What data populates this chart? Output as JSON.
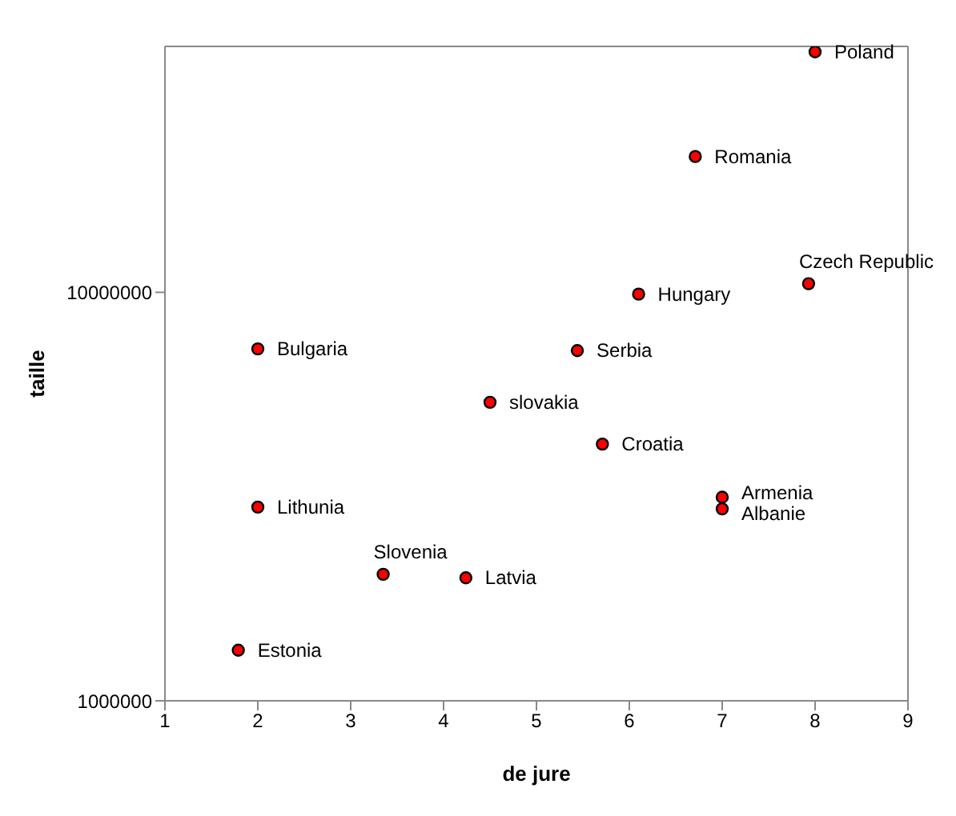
{
  "chart_data": {
    "type": "scatter",
    "xlabel": "de jure",
    "ylabel": "taille",
    "log": "y",
    "xlim": [
      1,
      9
    ],
    "xticks": [
      1,
      2,
      3,
      4,
      5,
      6,
      7,
      8,
      9
    ],
    "ylim": [
      1000000,
      40000000
    ],
    "yticks": [
      1000000,
      10000000
    ],
    "grid": false,
    "legend": false,
    "marker": "circle",
    "series": [
      {
        "color": "#ff0000",
        "x": [
          8.0,
          6.71,
          7.93,
          6.1,
          2.0,
          5.44,
          4.5,
          5.71,
          7.0,
          7.0,
          2.0,
          3.35,
          4.24,
          1.79
        ],
        "values": [
          38800000,
          21500000,
          10500000,
          9900000,
          7270000,
          7200000,
          5380000,
          4250000,
          3150000,
          2950000,
          2980000,
          2040000,
          2000000,
          1330000
        ]
      }
    ],
    "annotations": [
      {
        "text": "Poland",
        "x": 8.0,
        "y": 38800000
      },
      {
        "text": "Romania",
        "x": 6.71,
        "y": 21500000
      },
      {
        "text": "Czech Republic",
        "x": 7.93,
        "y": 10500000
      },
      {
        "text": "Hungary",
        "x": 6.1,
        "y": 9900000
      },
      {
        "text": "Bulgaria",
        "x": 2.0,
        "y": 7270000
      },
      {
        "text": "Serbia",
        "x": 5.44,
        "y": 7200000
      },
      {
        "text": "slovakia",
        "x": 4.5,
        "y": 5380000
      },
      {
        "text": "Croatia",
        "x": 5.71,
        "y": 4250000
      },
      {
        "text": "Armenia",
        "x": 7.0,
        "y": 3150000
      },
      {
        "text": "Albanie",
        "x": 7.0,
        "y": 2950000
      },
      {
        "text": "Lithunia",
        "x": 2.0,
        "y": 2980000
      },
      {
        "text": "Slovenia",
        "x": 3.35,
        "y": 2040000
      },
      {
        "text": "Latvia",
        "x": 4.24,
        "y": 2000000
      },
      {
        "text": "Estonia",
        "x": 1.79,
        "y": 1330000
      }
    ]
  }
}
